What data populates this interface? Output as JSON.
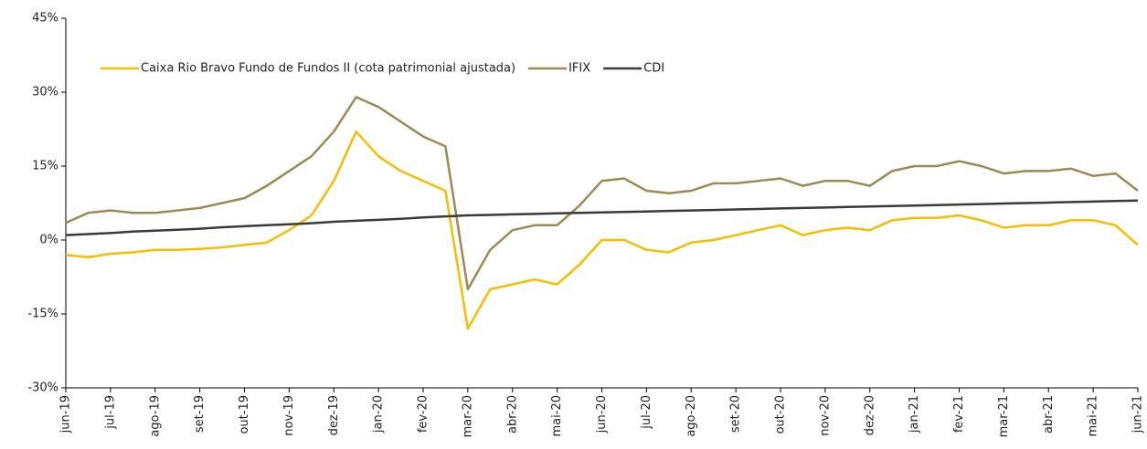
{
  "chart_data": {
    "type": "line",
    "categories": [
      "jun-19",
      null,
      "jul-19",
      null,
      "ago-19",
      null,
      "set-19",
      null,
      "out-19",
      null,
      "nov-19",
      null,
      "dez-19",
      null,
      "jan-20",
      null,
      "fev-20",
      null,
      "mar-20",
      null,
      "abr-20",
      null,
      "mai-20",
      null,
      "jun-20",
      null,
      "jul-20",
      null,
      "ago-20",
      null,
      "set-20",
      null,
      "out-20",
      null,
      "nov-20",
      null,
      "dez-20",
      null,
      "jan-21",
      null,
      "fev-21",
      null,
      "mar-21",
      null,
      "abr-21",
      null,
      "mai-21",
      null,
      "jun-21"
    ],
    "series": [
      {
        "name": "Caixa Rio Bravo Fundo de Fundos II (cota patrimonial ajustada)",
        "color": "#f5be00",
        "values": [
          -3,
          -3.5,
          -2.8,
          -2.5,
          -2,
          -2,
          -1.8,
          -1.5,
          -1,
          -0.5,
          2,
          5,
          12,
          22,
          17,
          14,
          12,
          10,
          -18,
          -10,
          -9,
          -8,
          -9,
          -5,
          0,
          0,
          -2,
          -2.5,
          -0.5,
          0,
          1,
          2,
          3,
          1,
          2,
          2.5,
          2,
          4,
          4.5,
          4.5,
          5,
          4,
          2.5,
          3,
          3,
          4,
          4,
          3,
          -1
        ]
      },
      {
        "name": "IFIX",
        "color": "#9a8b55",
        "values": [
          3.5,
          5.5,
          6,
          5.5,
          5.5,
          6,
          6.5,
          7.5,
          8.5,
          11,
          14,
          17,
          22,
          29,
          27,
          24,
          21,
          19,
          -10,
          -2,
          2,
          3,
          3,
          7,
          12,
          12.5,
          10,
          9.5,
          10,
          11.5,
          11.5,
          12,
          12.5,
          11,
          12,
          12,
          11,
          14,
          15,
          15,
          16,
          15,
          13.5,
          14,
          14,
          14.5,
          13,
          13.5,
          10
        ]
      },
      {
        "name": "CDI",
        "color": "#3a3a3a",
        "values": [
          1,
          1.2,
          1.4,
          1.7,
          1.9,
          2.1,
          2.3,
          2.6,
          2.8,
          3.0,
          3.2,
          3.4,
          3.7,
          3.9,
          4.1,
          4.3,
          4.6,
          4.8,
          5.0,
          5.1,
          5.2,
          5.3,
          5.4,
          5.5,
          5.6,
          5.7,
          5.8,
          5.9,
          6.0,
          6.1,
          6.2,
          6.3,
          6.4,
          6.5,
          6.6,
          6.7,
          6.8,
          6.9,
          7.0,
          7.1,
          7.2,
          7.3,
          7.4,
          7.5,
          7.6,
          7.7,
          7.8,
          7.9,
          8.0
        ]
      }
    ],
    "ylim": [
      -30,
      45
    ],
    "yticks": [
      {
        "value": -30,
        "label": "-30%"
      },
      {
        "value": -15,
        "label": "-15%"
      },
      {
        "value": 0,
        "label": "0%"
      },
      {
        "value": 15,
        "label": "15%"
      },
      {
        "value": 30,
        "label": "30%"
      },
      {
        "value": 45,
        "label": "45%"
      }
    ],
    "grid": false,
    "legend": "top"
  }
}
